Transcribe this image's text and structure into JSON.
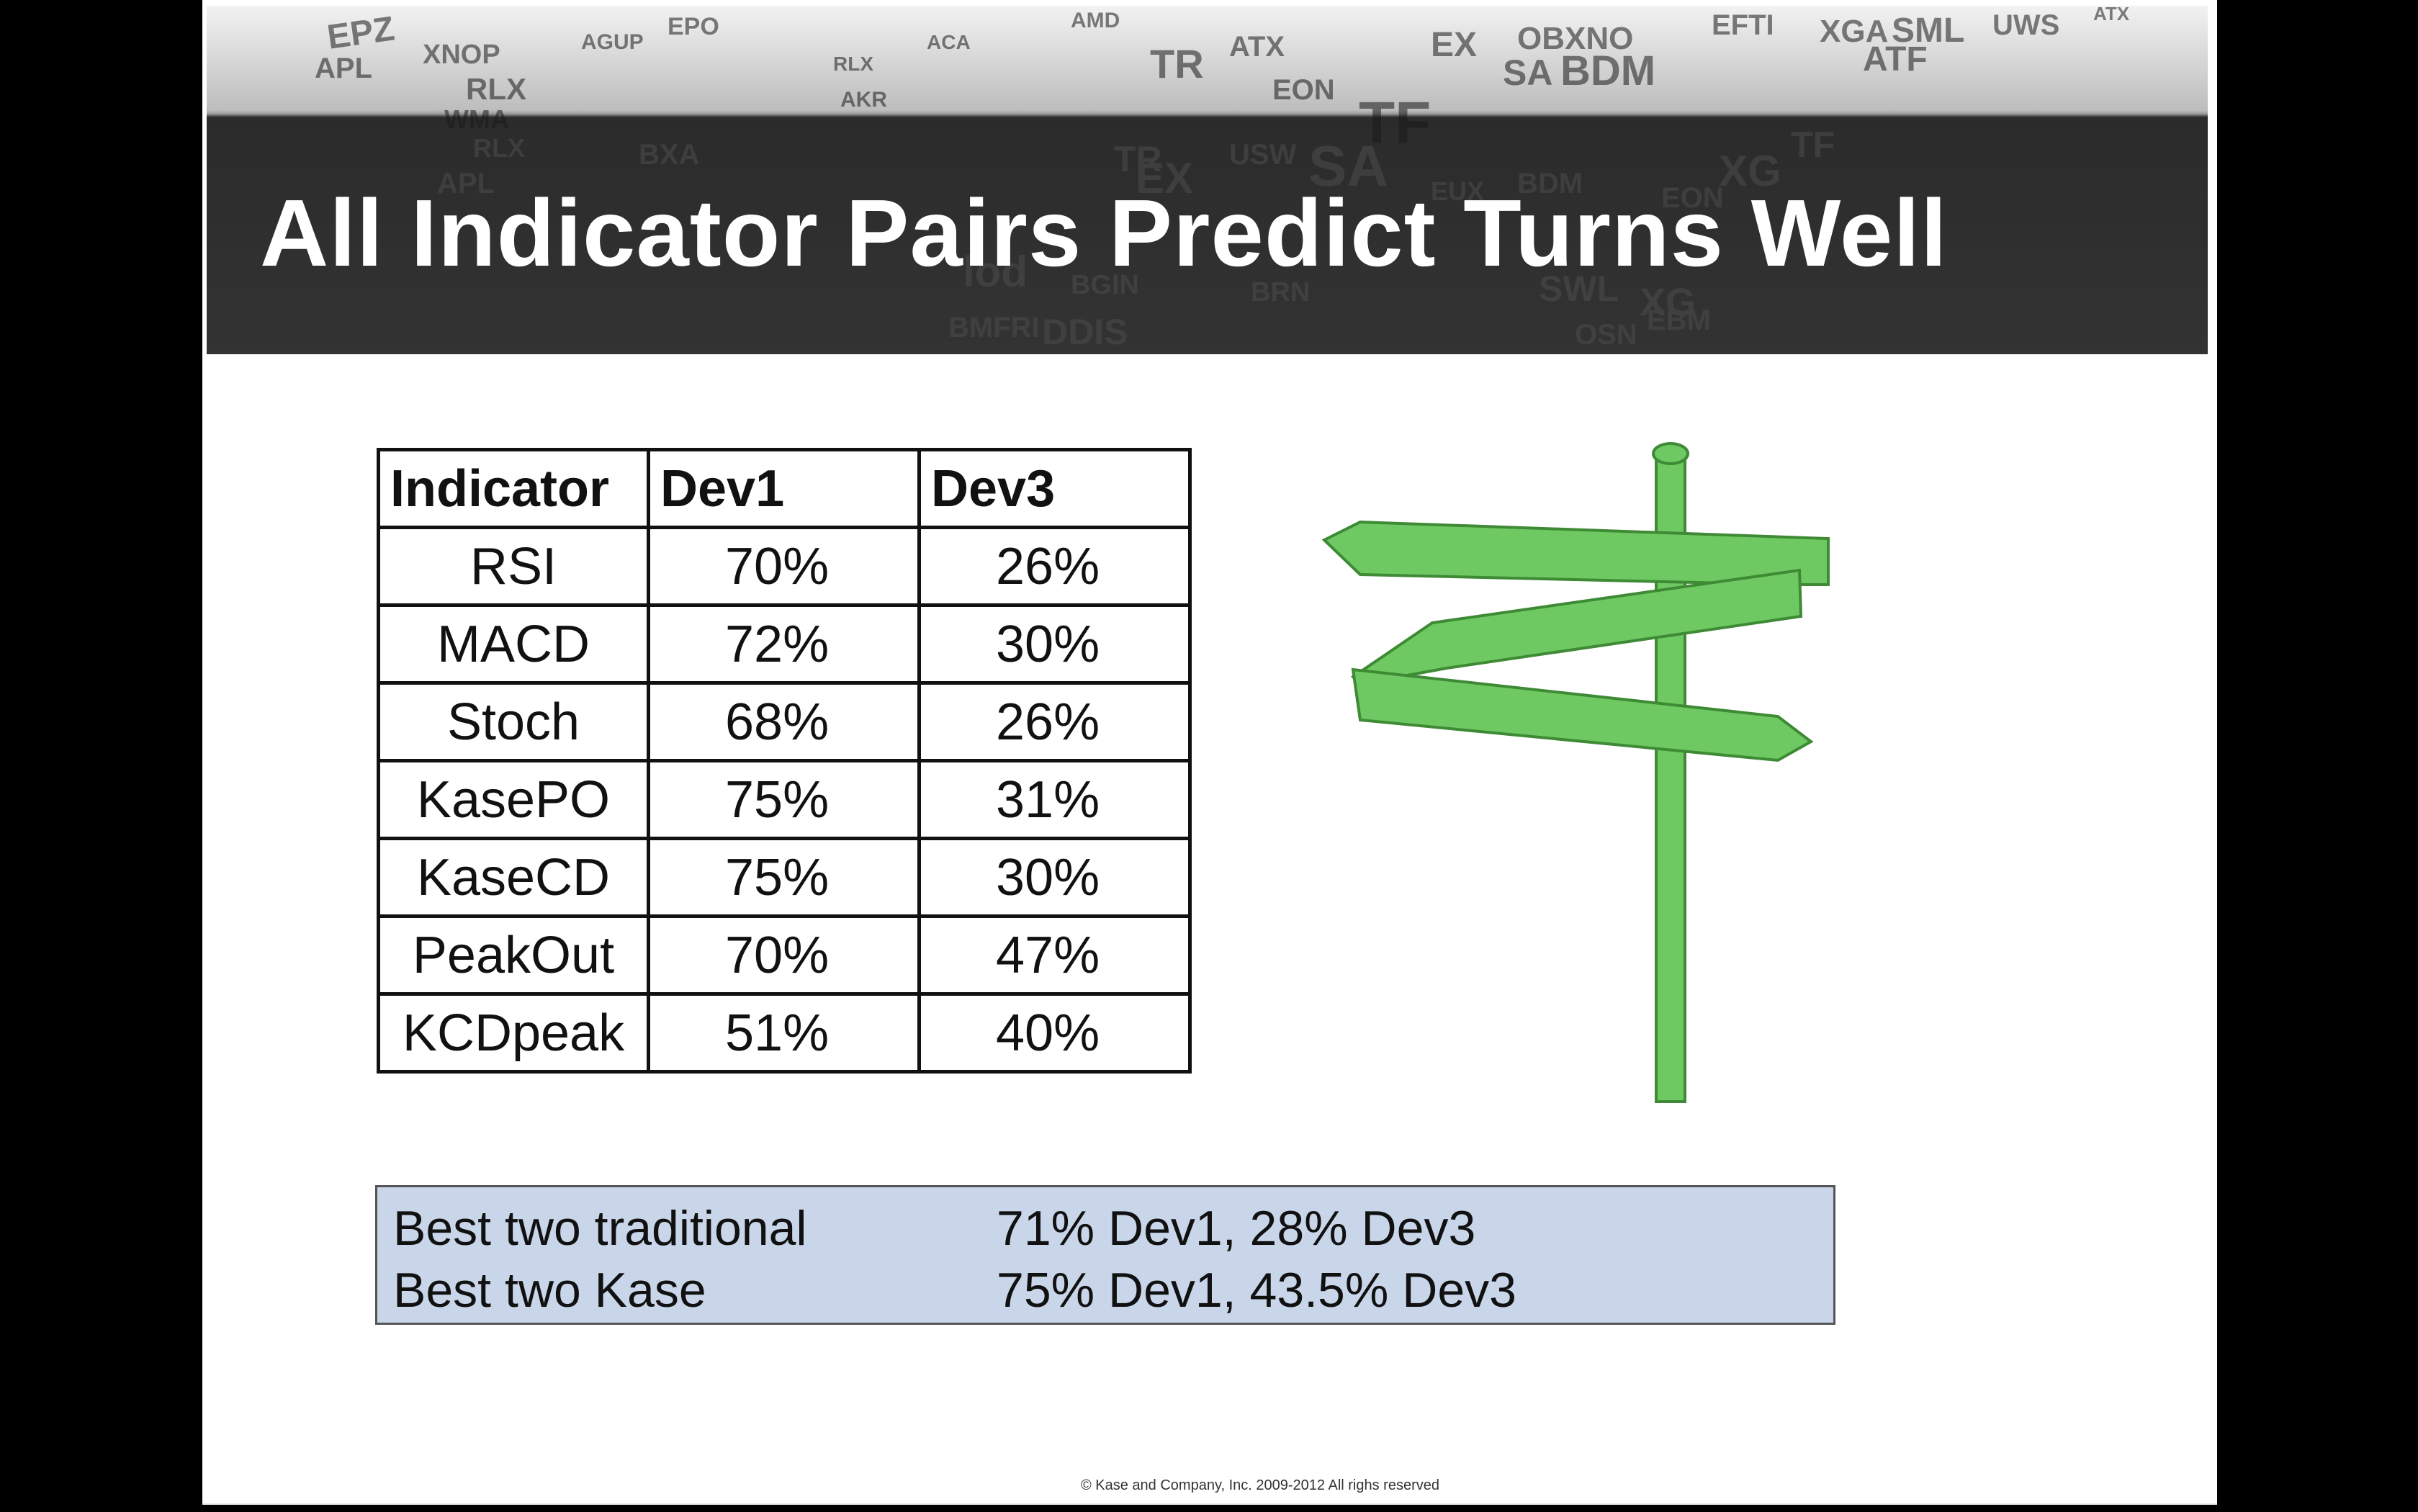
{
  "slide": {
    "title": "All Indicator Pairs Predict Turns Well",
    "table": {
      "headers": [
        "Indicator",
        "Dev1",
        "Dev3"
      ],
      "rows": [
        {
          "indicator": "RSI",
          "dev1": "70%",
          "dev3": "26%"
        },
        {
          "indicator": "MACD",
          "dev1": "72%",
          "dev3": "30%"
        },
        {
          "indicator": "Stoch",
          "dev1": "68%",
          "dev3": "26%"
        },
        {
          "indicator": "KasePO",
          "dev1": "75%",
          "dev3": "31%"
        },
        {
          "indicator": "KaseCD",
          "dev1": "75%",
          "dev3": "30%"
        },
        {
          "indicator": "PeakOut",
          "dev1": "70%",
          "dev3": "47%"
        },
        {
          "indicator": "KCDpeak",
          "dev1": "51%",
          "dev3": "40%"
        }
      ]
    },
    "summary": [
      {
        "label": "Best two traditional",
        "value": "71% Dev1, 28% Dev3"
      },
      {
        "label": "Best two Kase",
        "value": "75% Dev1, 43.5% Dev3"
      }
    ],
    "footer": "© Kase and Company, Inc. 2009-2012 All righs reserved",
    "colors": {
      "signpost_green": "#6fc963",
      "signpost_outline": "#3e8a35",
      "summary_bg": "#c9d6e9",
      "header_dark": "#2b2b2b"
    }
  }
}
